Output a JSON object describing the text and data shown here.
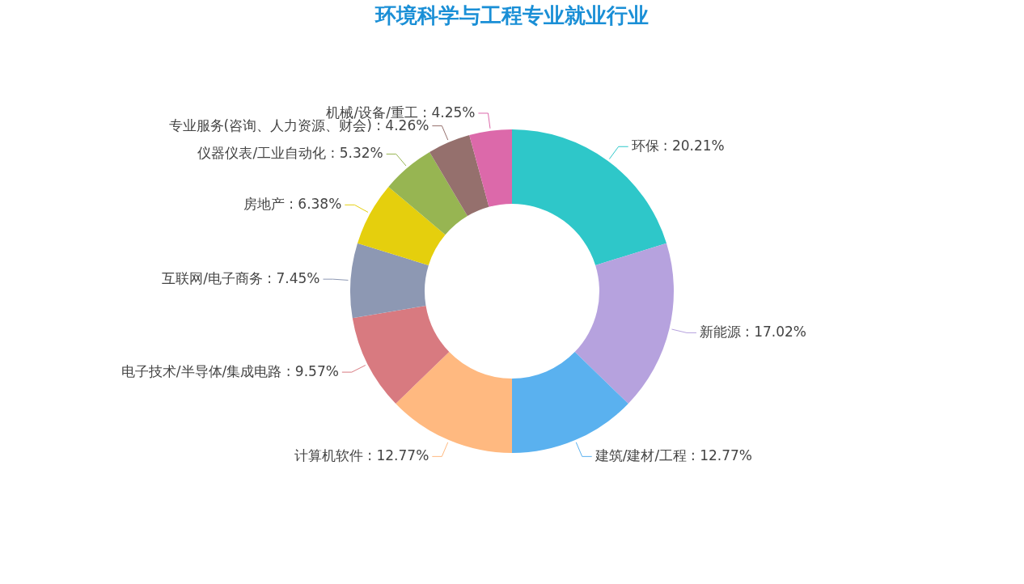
{
  "chart_data": {
    "type": "donut",
    "title": "环境科学与工程专业就业行业",
    "categories": [
      "环保",
      "新能源",
      "建筑/建材/工程",
      "计算机软件",
      "电子技术/半导体/集成电路",
      "互联网/电子商务",
      "房地产",
      "仪器仪表/工业自动化",
      "专业服务(咨询、人力资源、财会)",
      "机械/设备/重工"
    ],
    "values": [
      20.21,
      17.02,
      12.77,
      12.77,
      9.57,
      7.45,
      6.38,
      5.32,
      4.26,
      4.25
    ],
    "colors": [
      "#2ec7c9",
      "#b6a2de",
      "#5ab1ef",
      "#ffb980",
      "#d87a80",
      "#8d98b3",
      "#e5cf0d",
      "#97b552",
      "#95706d",
      "#dc69aa"
    ],
    "value_labels": [
      ": 20.21%",
      ": 17.02%",
      ": 12.77%",
      ": 12.77%",
      ": 9.57%",
      ": 7.45%",
      ": 6.38%",
      ": 5.32%",
      ": 4.26%",
      ": 4.25%"
    ],
    "legend": false
  }
}
